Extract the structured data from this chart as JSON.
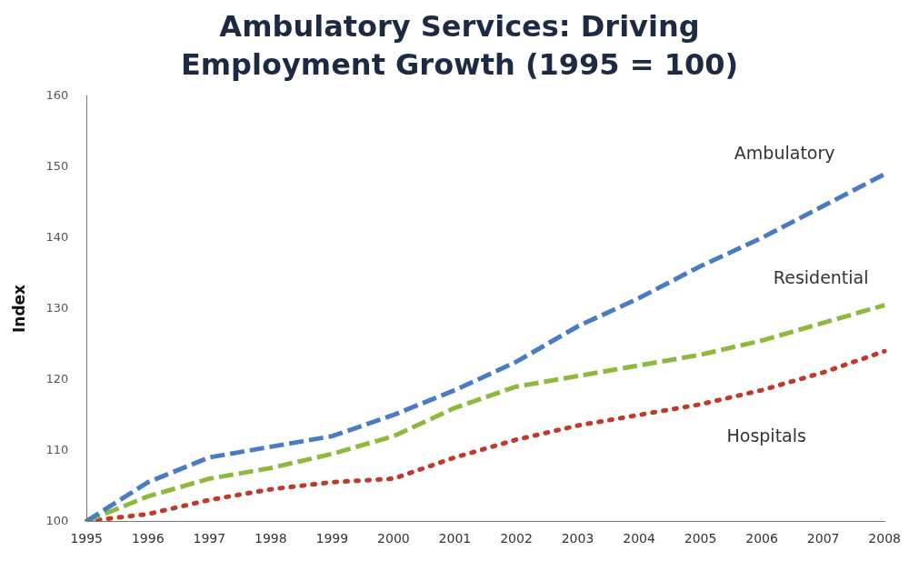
{
  "chart_data": {
    "type": "line",
    "title": "Ambulatory Services: Driving Employment Growth (1995 = 100)",
    "ylabel": "Index",
    "categories": [
      "1995",
      "1996",
      "1997",
      "1998",
      "1999",
      "2000",
      "2001",
      "2002",
      "2003",
      "2004",
      "2005",
      "2006",
      "2007",
      "2008"
    ],
    "series": [
      {
        "name": "Ambulatory",
        "color": "#4a7cc4",
        "line_style": "dashed",
        "values": [
          100,
          105.5,
          109,
          110.5,
          112,
          115,
          118.5,
          122.5,
          127.5,
          131.5,
          136,
          140,
          144.5,
          149
        ]
      },
      {
        "name": "Residential",
        "color": "#8dba3e",
        "line_style": "dashed",
        "values": [
          100,
          103.5,
          106,
          107.5,
          109.5,
          112,
          116,
          119,
          120.5,
          122,
          123.5,
          125.5,
          128,
          130.5
        ]
      },
      {
        "name": "Hospitals",
        "color": "#c0392b",
        "line_style": "dotted",
        "values": [
          100,
          101,
          103,
          104.5,
          105.5,
          106,
          109,
          111.5,
          113.5,
          115,
          116.5,
          118.5,
          121,
          124
        ]
      }
    ],
    "ylim": [
      100,
      160
    ],
    "yticks": [
      100,
      110,
      120,
      130,
      140,
      150,
      160
    ],
    "grid": false,
    "legend": false,
    "marker": "none"
  }
}
